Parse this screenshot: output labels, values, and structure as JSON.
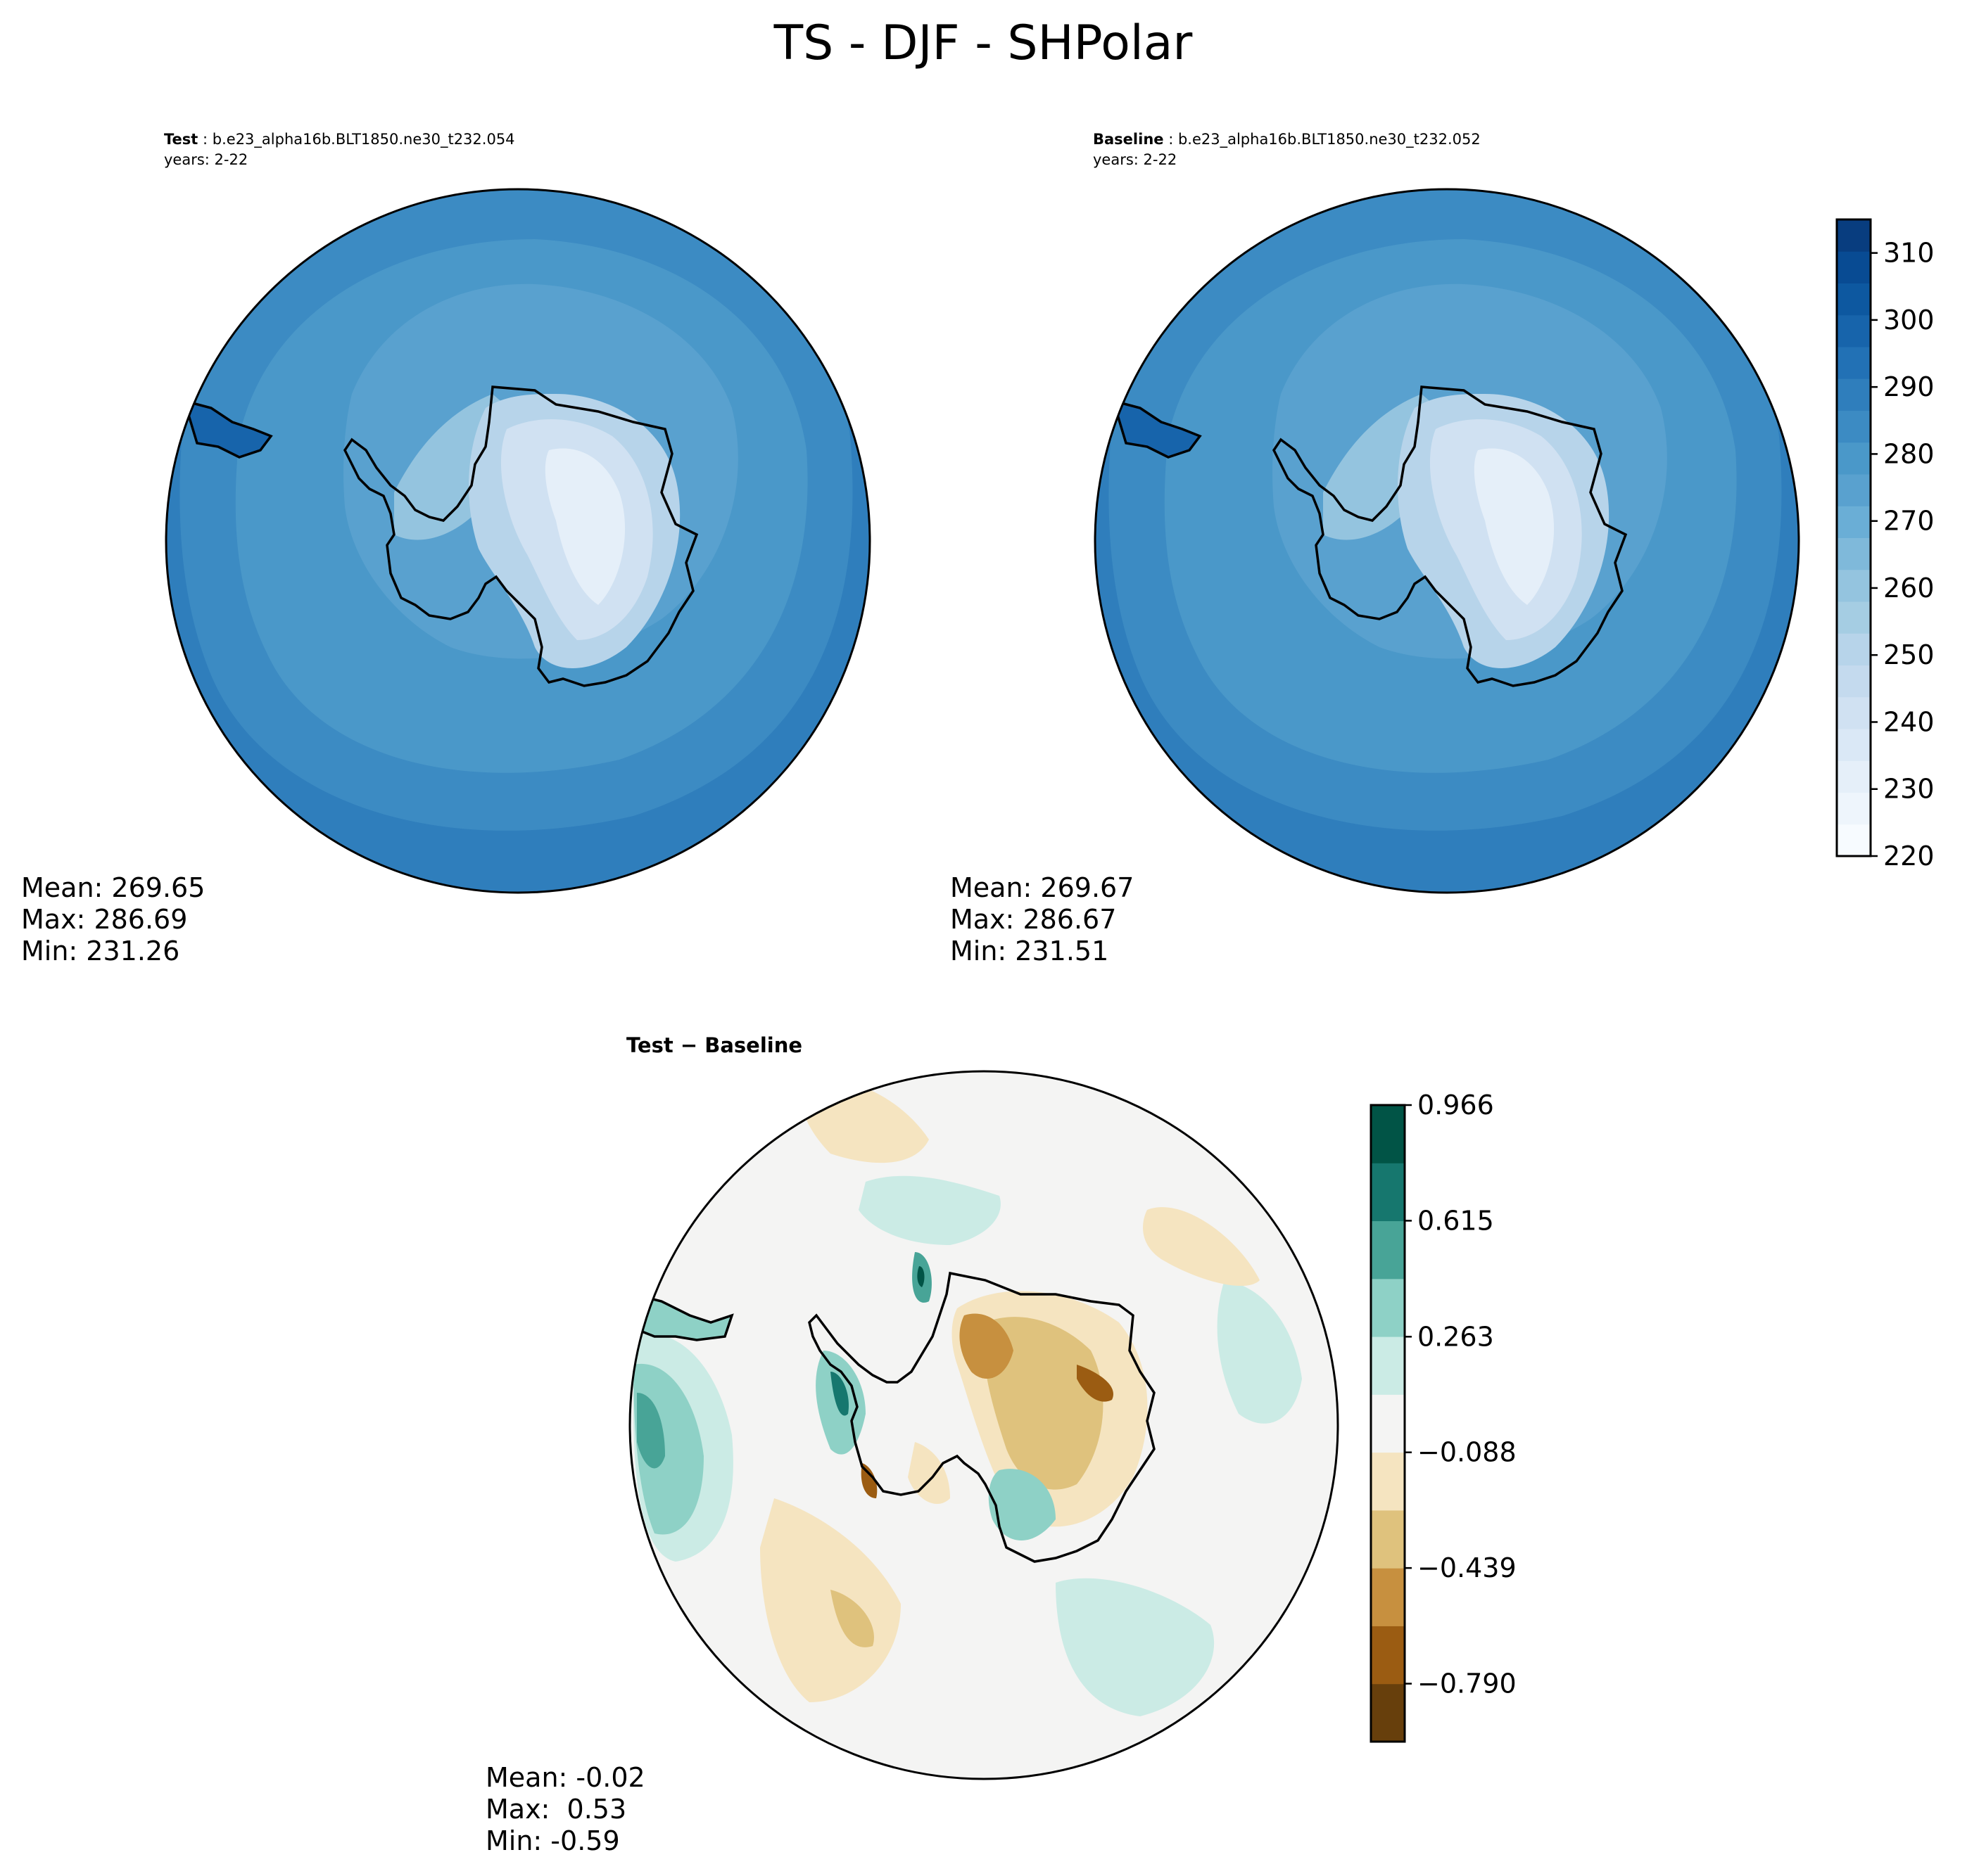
{
  "figure": {
    "title": "TS - DJF - SHPolar"
  },
  "chart_data": [
    {
      "type": "heatmap",
      "projection": "south-polar-stereographic",
      "region": "SHPolar",
      "variable": "TS",
      "season": "DJF",
      "label_bold": "Test",
      "case": "b.e23_alpha16b.BLT1850.ne30_t232.054",
      "years": "years: 2-22",
      "stats": {
        "mean": "Mean: 269.65",
        "max": "Max: 286.69",
        "min": "Min: 231.26"
      },
      "values": {
        "mean": 269.65,
        "max": 286.69,
        "min": 231.26
      },
      "colormap": "Blues",
      "colorbar": "shared"
    },
    {
      "type": "heatmap",
      "projection": "south-polar-stereographic",
      "region": "SHPolar",
      "variable": "TS",
      "season": "DJF",
      "label_bold": "Baseline",
      "case": "b.e23_alpha16b.BLT1850.ne30_t232.052",
      "years": "years: 2-22",
      "stats": {
        "mean": "Mean: 269.67",
        "max": "Max: 286.67",
        "min": "Min: 231.51"
      },
      "values": {
        "mean": 269.67,
        "max": 286.67,
        "min": 231.51
      },
      "colormap": "Blues",
      "colorbar": {
        "range": [
          220,
          315
        ],
        "ticks": [
          "220",
          "230",
          "240",
          "250",
          "260",
          "270",
          "280",
          "290",
          "300",
          "310"
        ],
        "levels": 19,
        "colors": [
          "#f7fbff",
          "#eef5fc",
          "#e5eff9",
          "#dae8f6",
          "#d0e1f2",
          "#c4daee",
          "#b7d4ea",
          "#a5cde3",
          "#94c4df",
          "#7fb9da",
          "#6aaed6",
          "#59a1cf",
          "#4a98c9",
          "#3c8bc3",
          "#2f7ebc",
          "#2271b5",
          "#1764ab",
          "#0d58a0",
          "#084b93",
          "#083d7f"
        ]
      }
    },
    {
      "type": "heatmap",
      "projection": "south-polar-stereographic",
      "region": "SHPolar",
      "label_bold": "Test − Baseline",
      "stats": {
        "mean": "Mean: -0.02",
        "max": "Max:  0.53",
        "min": "Min: -0.59"
      },
      "values": {
        "mean": -0.02,
        "max": 0.53,
        "min": -0.59
      },
      "colormap": "BrBG",
      "colorbar": {
        "range": [
          -0.966,
          0.966
        ],
        "ticks": [
          "−0.790",
          "−0.439",
          "−0.088",
          "0.263",
          "0.615",
          "0.966"
        ],
        "tick_values": [
          -0.79,
          -0.439,
          -0.088,
          0.263,
          0.615,
          0.966
        ],
        "colors": [
          "#673f0c",
          "#9b5c12",
          "#c7903f",
          "#dfc27d",
          "#f5e4c0",
          "#f4f4f3",
          "#cbebe5",
          "#8ed1c6",
          "#48a497",
          "#16776e",
          "#015446"
        ]
      }
    }
  ]
}
